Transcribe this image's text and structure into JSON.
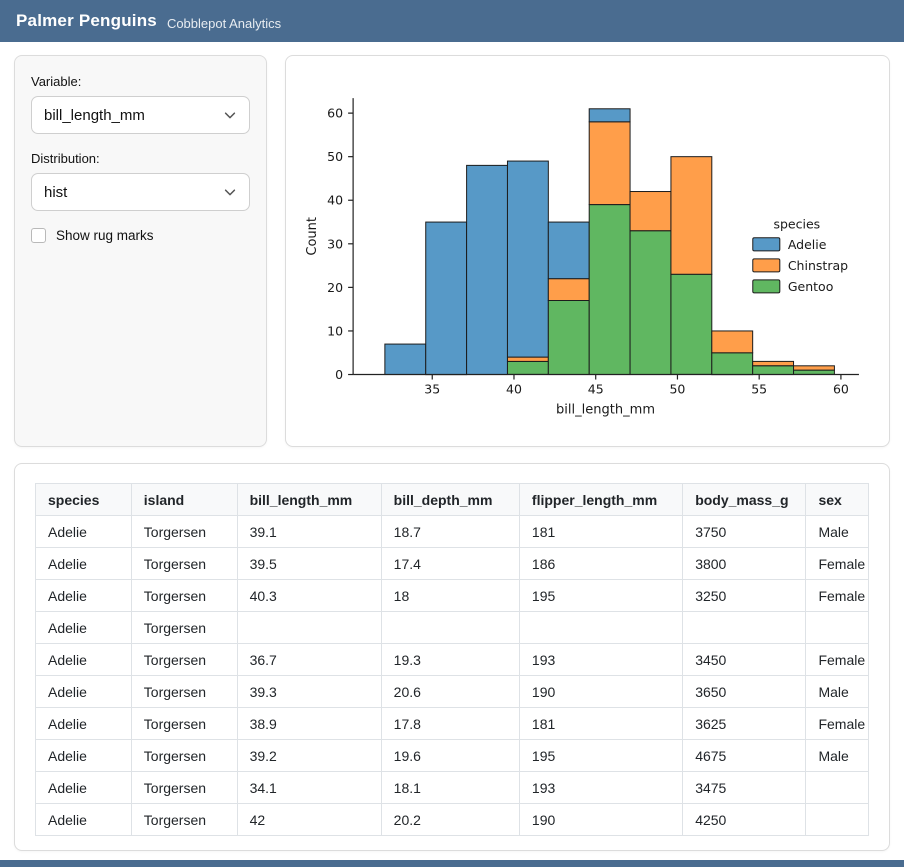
{
  "header": {
    "title": "Palmer Penguins",
    "subtitle": "Cobblepot Analytics"
  },
  "sidebar": {
    "variable_label": "Variable:",
    "variable_value": "bill_length_mm",
    "distribution_label": "Distribution:",
    "distribution_value": "hist",
    "rug_checkbox_label": "Show rug marks",
    "rug_checked": false
  },
  "colors": {
    "navbar_bg": "#4a6c90",
    "adelie": "#5799c7",
    "chinstrap": "#ff9e4a",
    "gentoo": "#60b761",
    "bar_edge": "#1c1c1c"
  },
  "chart_data": {
    "type": "bar",
    "subtype": "stacked-histogram",
    "title": "",
    "xlabel": "bill_length_mm",
    "ylabel": "Count",
    "bin_start": 32.1,
    "bin_width": 2.5,
    "bin_edges": [
      32.1,
      34.6,
      37.1,
      39.6,
      42.1,
      44.6,
      47.1,
      49.6,
      52.1,
      54.6,
      57.1,
      59.6
    ],
    "stack_order_note": "series listed bottom-to-top of stack",
    "series": [
      {
        "name": "Gentoo",
        "color": "#60b761",
        "values": [
          0,
          0,
          0,
          3,
          17,
          39,
          33,
          23,
          5,
          2,
          1
        ]
      },
      {
        "name": "Chinstrap",
        "color": "#ff9e4a",
        "values": [
          0,
          0,
          0,
          1,
          5,
          19,
          9,
          27,
          5,
          1,
          1
        ]
      },
      {
        "name": "Adelie",
        "color": "#5799c7",
        "values": [
          7,
          35,
          48,
          45,
          13,
          3,
          0,
          0,
          0,
          0,
          0
        ]
      }
    ],
    "bin_totals": [
      7,
      35,
      48,
      49,
      35,
      61,
      42,
      50,
      10,
      3,
      2
    ],
    "xticks": [
      35,
      40,
      45,
      50,
      55,
      60
    ],
    "yticks": [
      0,
      10,
      20,
      30,
      40,
      50,
      60
    ],
    "xlim": [
      31.6,
      61.1
    ],
    "ylim": [
      0,
      63
    ],
    "grid": false,
    "legend": {
      "title": "species",
      "position": "center-right",
      "entries": [
        {
          "label": "Adelie",
          "color": "#5799c7"
        },
        {
          "label": "Chinstrap",
          "color": "#ff9e4a"
        },
        {
          "label": "Gentoo",
          "color": "#60b761"
        }
      ]
    }
  },
  "table": {
    "columns": [
      "species",
      "island",
      "bill_length_mm",
      "bill_depth_mm",
      "flipper_length_mm",
      "body_mass_g",
      "sex"
    ],
    "rows": [
      [
        "Adelie",
        "Torgersen",
        "39.1",
        "18.7",
        "181",
        "3750",
        "Male"
      ],
      [
        "Adelie",
        "Torgersen",
        "39.5",
        "17.4",
        "186",
        "3800",
        "Female"
      ],
      [
        "Adelie",
        "Torgersen",
        "40.3",
        "18",
        "195",
        "3250",
        "Female"
      ],
      [
        "Adelie",
        "Torgersen",
        "",
        "",
        "",
        "",
        ""
      ],
      [
        "Adelie",
        "Torgersen",
        "36.7",
        "19.3",
        "193",
        "3450",
        "Female"
      ],
      [
        "Adelie",
        "Torgersen",
        "39.3",
        "20.6",
        "190",
        "3650",
        "Male"
      ],
      [
        "Adelie",
        "Torgersen",
        "38.9",
        "17.8",
        "181",
        "3625",
        "Female"
      ],
      [
        "Adelie",
        "Torgersen",
        "39.2",
        "19.6",
        "195",
        "4675",
        "Male"
      ],
      [
        "Adelie",
        "Torgersen",
        "34.1",
        "18.1",
        "193",
        "3475",
        ""
      ],
      [
        "Adelie",
        "Torgersen",
        "42",
        "20.2",
        "190",
        "4250",
        ""
      ]
    ]
  }
}
